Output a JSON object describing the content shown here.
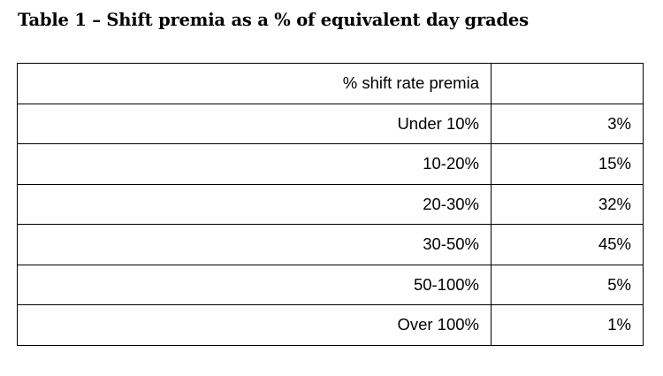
{
  "title": "Table 1 – Shift premia as a % of equivalent day grades",
  "table": {
    "header": {
      "band": "% shift rate premia",
      "share": ""
    },
    "rows": [
      {
        "band": "Under 10%",
        "share": "3%"
      },
      {
        "band": "10-20%",
        "share": "15%"
      },
      {
        "band": "20-30%",
        "share": "32%"
      },
      {
        "band": "30-50%",
        "share": "45%"
      },
      {
        "band": "50-100%",
        "share": "5%"
      },
      {
        "band": "Over 100%",
        "share": "1%"
      }
    ]
  }
}
